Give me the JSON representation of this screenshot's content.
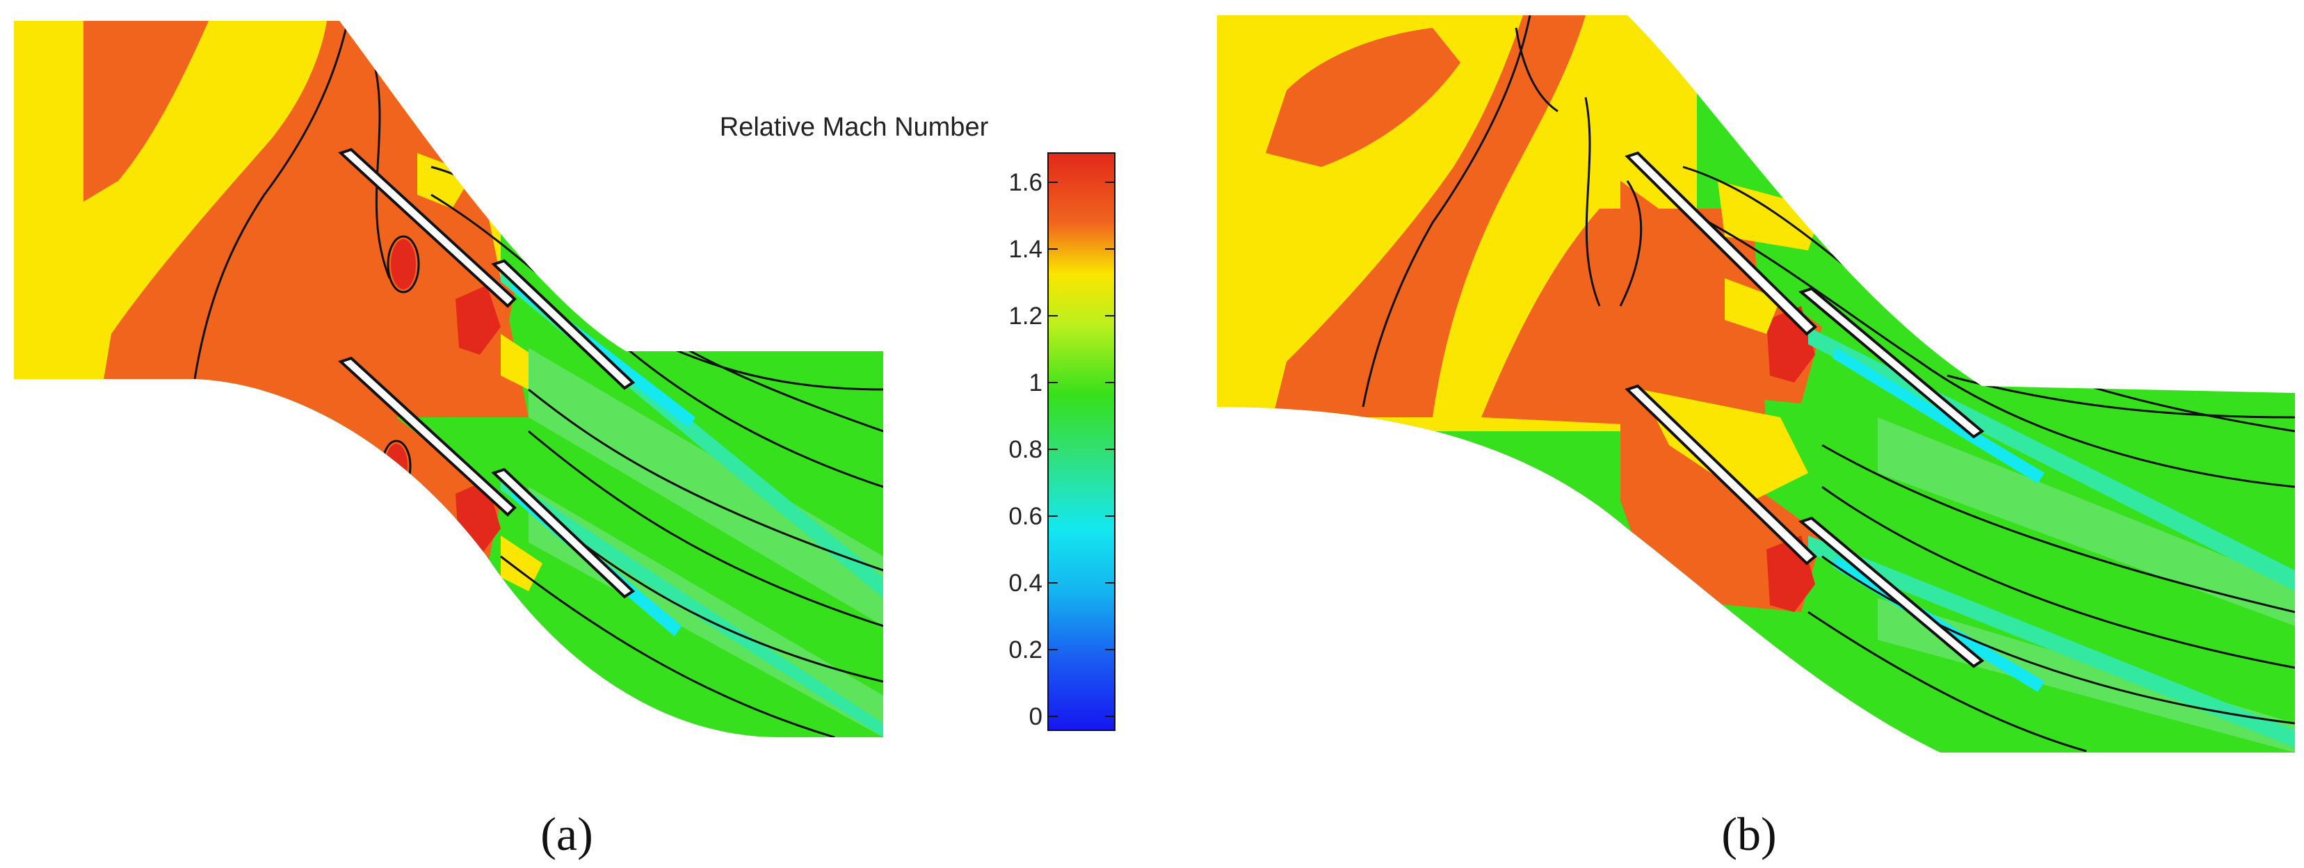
{
  "colorbar": {
    "title": "Relative Mach Number",
    "ticks": [
      "1.6",
      "1.4",
      "1.2",
      "1",
      "0.8",
      "0.6",
      "0.4",
      "0.2",
      "0"
    ]
  },
  "panels": [
    {
      "label": "(a)"
    },
    {
      "label": "(b)"
    }
  ],
  "palette": {
    "red": "#e3291b",
    "orange": "#f0641e",
    "yellow": "#fae600",
    "lime": "#b9f01e",
    "green": "#36e01c",
    "light_green": "#5ee35c",
    "aqua_green": "#33e8a0",
    "cyan": "#14e8f0",
    "blue": "#1616f0"
  }
}
